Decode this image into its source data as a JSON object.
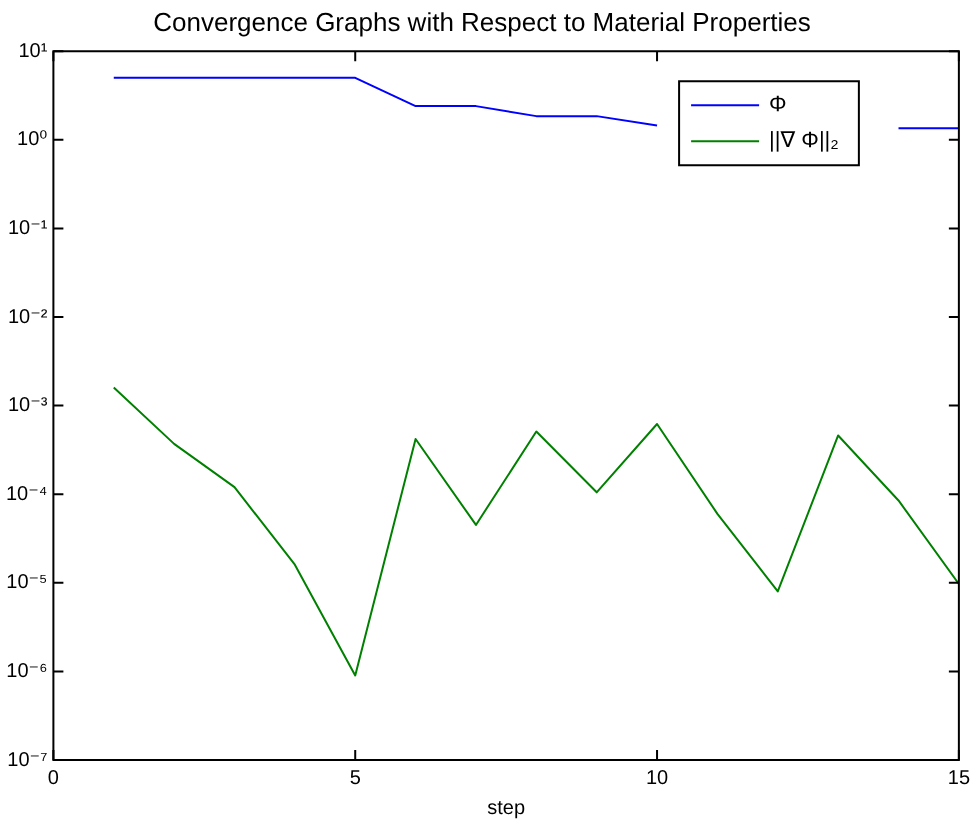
{
  "chart_data": {
    "type": "line",
    "title": "Convergence Graphs with Respect to Material Properties",
    "xlabel": "step",
    "x": [
      1,
      2,
      3,
      4,
      5,
      6,
      7,
      8,
      9,
      10,
      11,
      12,
      13,
      14,
      15
    ],
    "series": [
      {
        "name": "Φ",
        "color": "#0000ff",
        "values": [
          5.0,
          5.0,
          5.0,
          5.0,
          5.0,
          2.4,
          2.4,
          1.85,
          1.85,
          1.45,
          null,
          null,
          null,
          1.35,
          1.35
        ]
      },
      {
        "name": "||∇ Φ||₂",
        "color": "#008000",
        "values": [
          0.0016,
          0.00037,
          0.00012,
          1.6e-05,
          9e-07,
          0.00042,
          4.5e-05,
          0.00051,
          0.000105,
          0.00062,
          6e-05,
          8e-06,
          0.00046,
          8.5e-05,
          9.7e-06
        ]
      }
    ],
    "log": "y",
    "xlim": [
      0,
      15
    ],
    "xticks": [
      0,
      5,
      10,
      15
    ],
    "ylim": [
      1e-07,
      10
    ],
    "yticks": [
      {
        "value": 1e-07,
        "label": "10⁻⁷"
      },
      {
        "value": 1e-06,
        "label": "10⁻⁶"
      },
      {
        "value": 1e-05,
        "label": "10⁻⁵"
      },
      {
        "value": 0.0001,
        "label": "10⁻⁴"
      },
      {
        "value": 0.001,
        "label": "10⁻³"
      },
      {
        "value": 0.01,
        "label": "10⁻²"
      },
      {
        "value": 0.1,
        "label": "10⁻¹"
      },
      {
        "value": 1,
        "label": "10⁰"
      },
      {
        "value": 10,
        "label": "10¹"
      }
    ],
    "grid": false,
    "legend": "top right",
    "marker": "none",
    "line_style": "solid"
  }
}
